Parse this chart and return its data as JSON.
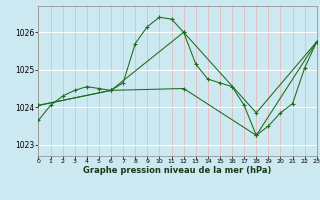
{
  "bg_color": "#cce8f0",
  "grid_white_color": "#ffffff",
  "grid_red_color": "#e8b0b0",
  "line_color": "#1a6b1a",
  "xlabel": "Graphe pression niveau de la mer (hPa)",
  "xlim": [
    0,
    23
  ],
  "ylim": [
    1022.7,
    1026.7
  ],
  "yticks": [
    1023,
    1024,
    1025,
    1026
  ],
  "xticks": [
    0,
    1,
    2,
    3,
    4,
    5,
    6,
    7,
    8,
    9,
    10,
    11,
    12,
    13,
    14,
    15,
    16,
    17,
    18,
    19,
    20,
    21,
    22,
    23
  ],
  "series": [
    {
      "x": [
        0,
        1,
        2,
        3,
        4,
        5,
        6,
        7,
        8,
        9,
        10,
        11,
        12,
        13,
        14,
        15,
        16,
        17,
        18,
        19,
        20,
        21,
        22,
        23
      ],
      "y": [
        1023.65,
        1024.05,
        1024.3,
        1024.45,
        1024.55,
        1024.5,
        1024.45,
        1024.65,
        1025.7,
        1026.15,
        1026.4,
        1026.35,
        1026.0,
        1025.15,
        1024.75,
        1024.65,
        1024.55,
        1024.05,
        1023.25,
        1023.5,
        1023.85,
        1024.1,
        1025.05,
        1025.75
      ]
    },
    {
      "x": [
        0,
        6,
        12,
        18,
        23
      ],
      "y": [
        1024.05,
        1024.45,
        1026.0,
        1023.85,
        1025.75
      ]
    },
    {
      "x": [
        0,
        6,
        12,
        18,
        23
      ],
      "y": [
        1024.05,
        1024.45,
        1024.5,
        1023.25,
        1025.75
      ]
    }
  ]
}
